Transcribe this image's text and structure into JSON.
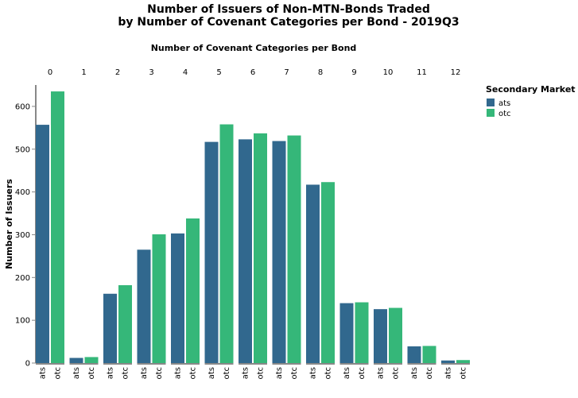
{
  "chart_data": {
    "type": "bar",
    "title": [
      "Number of Issuers of Non-MTN-Bonds Traded",
      "by Number of Covenant Categories per Bond - 2019Q3"
    ],
    "column_title": "Number of Covenant Categories per Bond",
    "ylabel": "Number of Issuers",
    "ylim": [
      0,
      650
    ],
    "yticks": [
      0,
      100,
      200,
      300,
      400,
      500,
      600
    ],
    "categories": [
      "0",
      "1",
      "2",
      "3",
      "4",
      "5",
      "6",
      "7",
      "8",
      "9",
      "10",
      "11",
      "12"
    ],
    "subcategories": [
      "ats",
      "otc"
    ],
    "series": [
      {
        "name": "ats",
        "color": "#31688e",
        "values": [
          557,
          12,
          162,
          265,
          303,
          517,
          523,
          519,
          417,
          140,
          126,
          39,
          6
        ]
      },
      {
        "name": "otc",
        "color": "#35b779",
        "values": [
          635,
          14,
          182,
          301,
          338,
          558,
          537,
          532,
          423,
          142,
          129,
          40,
          7
        ]
      }
    ],
    "grid": false,
    "legend": {
      "title": "Secondary Market",
      "placement": "top-right",
      "entries": [
        "ats",
        "otc"
      ]
    }
  }
}
